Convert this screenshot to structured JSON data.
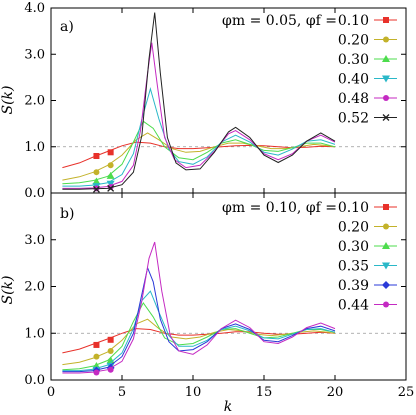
{
  "chart_data": [
    {
      "type": "line",
      "panel_label": "a)",
      "legend_header": "φm = 0.05, φf =",
      "ylabel": "S(k)",
      "xlabel": "",
      "xlim": [
        0,
        25
      ],
      "ylim": [
        0,
        4
      ],
      "xticks": [
        0,
        5,
        10,
        15,
        20,
        25
      ],
      "yticks": [
        "0.0",
        "1.0",
        "2.0",
        "3.0",
        "4.0"
      ],
      "yticks_values": [
        0,
        1,
        2,
        3,
        4
      ],
      "reference_line": 1.0,
      "legend_position": "top-right",
      "series": [
        {
          "name": "0.10",
          "color": "#e8312a",
          "marker": "square",
          "x": [
            0.8,
            2,
            3,
            4,
            5,
            6,
            7,
            8,
            9,
            10,
            11,
            12,
            13,
            14,
            15,
            16,
            17,
            18,
            19,
            20
          ],
          "y": [
            0.55,
            0.65,
            0.78,
            0.9,
            1.02,
            1.1,
            1.08,
            1.0,
            0.96,
            0.96,
            0.98,
            1.0,
            1.02,
            1.03,
            1.02,
            1.0,
            0.98,
            0.99,
            1.01,
            1.0
          ],
          "markers": [
            [
              3.2,
              0.8
            ],
            [
              4.2,
              0.88
            ]
          ]
        },
        {
          "name": "0.20",
          "color": "#c3b22a",
          "marker": "circle",
          "x": [
            0.8,
            2,
            3,
            4,
            5,
            6,
            6.8,
            7.6,
            8.5,
            9.5,
            10.5,
            11.5,
            12.5,
            13.5,
            14.5,
            15.5,
            16.5,
            17.5,
            18.5,
            19.5,
            20
          ],
          "y": [
            0.28,
            0.35,
            0.45,
            0.6,
            0.82,
            1.15,
            1.3,
            1.15,
            0.96,
            0.88,
            0.9,
            1.0,
            1.08,
            1.08,
            1.02,
            0.96,
            0.96,
            1.0,
            1.05,
            1.02,
            1.0
          ],
          "markers": [
            [
              3.2,
              0.45
            ],
            [
              4.2,
              0.6
            ]
          ]
        },
        {
          "name": "0.30",
          "color": "#4ddc4d",
          "marker": "triangle-up",
          "x": [
            0.8,
            2,
            3,
            4,
            5,
            5.8,
            6.5,
            7.2,
            8,
            9,
            10,
            11,
            12,
            13,
            14,
            15,
            16,
            17,
            18,
            19,
            20
          ],
          "y": [
            0.2,
            0.22,
            0.27,
            0.36,
            0.62,
            1.1,
            1.55,
            1.4,
            1.0,
            0.76,
            0.72,
            0.88,
            1.08,
            1.15,
            1.05,
            0.92,
            0.9,
            0.98,
            1.08,
            1.08,
            1.0
          ],
          "markers": [
            [
              3.2,
              0.25
            ],
            [
              4.2,
              0.37
            ]
          ]
        },
        {
          "name": "0.40",
          "color": "#2ab8c8",
          "marker": "triangle-down",
          "x": [
            0.8,
            2,
            3,
            4,
            5,
            5.8,
            6.4,
            7.0,
            7.6,
            8.3,
            9,
            10,
            11,
            12,
            13,
            14,
            15,
            16,
            17,
            18,
            19,
            20
          ],
          "y": [
            0.15,
            0.15,
            0.17,
            0.22,
            0.4,
            0.85,
            1.6,
            2.25,
            1.6,
            0.95,
            0.68,
            0.62,
            0.78,
            1.1,
            1.25,
            1.1,
            0.88,
            0.82,
            0.95,
            1.12,
            1.15,
            1.05
          ],
          "markers": [
            [
              3.2,
              0.15
            ],
            [
              4.2,
              0.2
            ]
          ]
        },
        {
          "name": "0.48",
          "color": "#c42ac2",
          "marker": "circle",
          "x": [
            0.8,
            2,
            3,
            4,
            5,
            5.8,
            6.3,
            6.8,
            7.1,
            7.5,
            8,
            8.7,
            9.5,
            10.5,
            11.5,
            12.5,
            13,
            14,
            15,
            16,
            17,
            18,
            19,
            20
          ],
          "y": [
            0.1,
            0.1,
            0.11,
            0.14,
            0.25,
            0.6,
            1.35,
            2.6,
            3.25,
            2.3,
            1.2,
            0.72,
            0.55,
            0.6,
            0.9,
            1.28,
            1.35,
            1.15,
            0.85,
            0.72,
            0.85,
            1.12,
            1.25,
            1.1
          ],
          "markers": [
            [
              3.2,
              0.1
            ],
            [
              4.2,
              0.13
            ]
          ]
        },
        {
          "name": "0.52",
          "color": "#222222",
          "marker": "cross",
          "x": [
            0.8,
            2,
            3,
            4,
            5,
            5.8,
            6.4,
            6.9,
            7.3,
            7.7,
            8.2,
            8.8,
            9.5,
            10.5,
            11.5,
            12.5,
            13,
            14,
            15,
            16,
            17,
            18,
            19,
            20
          ],
          "y": [
            0.08,
            0.08,
            0.09,
            0.1,
            0.18,
            0.45,
            1.25,
            2.9,
            3.9,
            2.6,
            1.2,
            0.65,
            0.5,
            0.52,
            0.88,
            1.32,
            1.42,
            1.2,
            0.82,
            0.66,
            0.82,
            1.12,
            1.3,
            1.12
          ],
          "markers": [
            [
              3.2,
              0.08
            ],
            [
              4.2,
              0.1
            ]
          ]
        }
      ]
    },
    {
      "type": "line",
      "panel_label": "b)",
      "legend_header": "φm = 0.10, φf =",
      "ylabel": "S(k)",
      "xlabel": "k",
      "xlim": [
        0,
        25
      ],
      "ylim": [
        0,
        4
      ],
      "xticks": [
        0,
        5,
        10,
        15,
        20,
        25
      ],
      "yticks": [
        "0.0",
        "1.0",
        "2.0",
        "3.0"
      ],
      "yticks_values": [
        0,
        1,
        2,
        3
      ],
      "reference_line": 1.0,
      "legend_position": "top-right",
      "series": [
        {
          "name": "0.10",
          "color": "#e8312a",
          "marker": "square",
          "x": [
            0.8,
            2,
            3,
            4,
            5,
            6,
            7,
            8,
            9,
            10,
            11,
            12,
            13,
            14,
            15,
            16,
            17,
            18,
            19,
            20
          ],
          "y": [
            0.58,
            0.66,
            0.77,
            0.88,
            1.0,
            1.1,
            1.08,
            1.0,
            0.96,
            0.96,
            0.98,
            1.0,
            1.03,
            1.03,
            1.0,
            0.98,
            0.98,
            1.0,
            1.02,
            1.0
          ],
          "markers": [
            [
              3.2,
              0.75
            ],
            [
              4.2,
              0.86
            ]
          ]
        },
        {
          "name": "0.20",
          "color": "#c3b22a",
          "marker": "circle",
          "x": [
            0.8,
            2,
            3,
            4,
            5,
            6,
            6.8,
            7.6,
            8.5,
            9.5,
            10.5,
            11.5,
            12.5,
            13.5,
            14.5,
            15.5,
            16.5,
            17.5,
            18.5,
            19.5,
            20
          ],
          "y": [
            0.33,
            0.38,
            0.47,
            0.6,
            0.85,
            1.2,
            1.3,
            1.1,
            0.92,
            0.88,
            0.92,
            1.02,
            1.08,
            1.05,
            0.98,
            0.95,
            0.98,
            1.02,
            1.05,
            1.02,
            1.0
          ],
          "markers": [
            [
              3.2,
              0.5
            ],
            [
              4.2,
              0.62
            ]
          ]
        },
        {
          "name": "0.30",
          "color": "#4ddc4d",
          "marker": "triangle-up",
          "x": [
            0.8,
            2,
            3,
            4,
            5,
            5.8,
            6.5,
            7.2,
            8,
            9,
            10,
            11,
            12,
            13,
            14,
            15,
            16,
            17,
            18,
            19,
            20
          ],
          "y": [
            0.22,
            0.24,
            0.3,
            0.42,
            0.72,
            1.25,
            1.65,
            1.35,
            0.9,
            0.75,
            0.78,
            0.92,
            1.08,
            1.1,
            1.0,
            0.9,
            0.92,
            1.0,
            1.08,
            1.08,
            1.02
          ],
          "markers": [
            [
              3.2,
              0.3
            ],
            [
              4.2,
              0.42
            ]
          ]
        },
        {
          "name": "0.35",
          "color": "#2ab8c8",
          "marker": "triangle-down",
          "x": [
            0.8,
            2,
            3,
            4,
            5,
            5.8,
            6.4,
            7.0,
            7.6,
            8.3,
            9,
            10,
            11,
            12,
            13,
            14,
            15,
            16,
            17,
            18,
            19,
            20
          ],
          "y": [
            0.2,
            0.2,
            0.23,
            0.32,
            0.58,
            1.1,
            1.7,
            1.9,
            1.45,
            0.95,
            0.72,
            0.72,
            0.85,
            1.08,
            1.15,
            1.05,
            0.9,
            0.88,
            0.98,
            1.08,
            1.1,
            1.02
          ],
          "markers": [
            [
              3.2,
              0.22
            ],
            [
              4.2,
              0.3
            ]
          ]
        },
        {
          "name": "0.39",
          "color": "#2a3ad8",
          "marker": "diamond",
          "x": [
            0.8,
            2,
            3,
            4,
            5,
            5.8,
            6.3,
            6.8,
            7.2,
            7.7,
            8.3,
            9,
            10,
            11,
            12,
            13,
            14,
            15,
            16,
            17,
            18,
            19,
            20
          ],
          "y": [
            0.18,
            0.18,
            0.2,
            0.27,
            0.5,
            1.0,
            1.7,
            2.4,
            2.1,
            1.3,
            0.82,
            0.62,
            0.65,
            0.82,
            1.1,
            1.2,
            1.08,
            0.85,
            0.82,
            0.95,
            1.1,
            1.15,
            1.05
          ],
          "markers": [
            [
              3.2,
              0.2
            ],
            [
              4.2,
              0.26
            ]
          ]
        },
        {
          "name": "0.44",
          "color": "#c42ac2",
          "marker": "circle",
          "x": [
            0.8,
            2,
            3,
            4,
            5,
            5.8,
            6.4,
            6.9,
            7.3,
            7.8,
            8.4,
            9,
            10,
            11,
            12,
            13,
            14,
            15,
            16,
            17,
            18,
            19,
            20
          ],
          "y": [
            0.15,
            0.15,
            0.17,
            0.22,
            0.4,
            0.88,
            1.7,
            2.6,
            2.95,
            1.9,
            0.95,
            0.62,
            0.55,
            0.75,
            1.1,
            1.28,
            1.12,
            0.82,
            0.78,
            0.92,
            1.12,
            1.22,
            1.1
          ],
          "markers": [
            [
              3.2,
              0.16
            ],
            [
              4.2,
              0.22
            ]
          ]
        }
      ]
    }
  ]
}
